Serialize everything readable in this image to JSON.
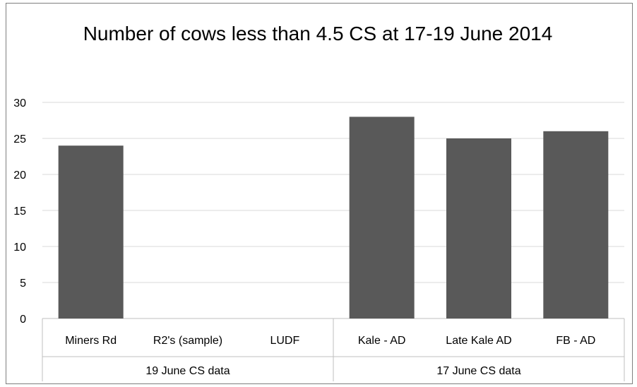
{
  "chart_data": {
    "type": "bar",
    "title": "Number of cows less than 4.5 CS at 17-19 June 2014",
    "categories": [
      "Miners Rd",
      "R2's (sample)",
      "LUDF",
      "Kale - AD",
      "Late Kale AD",
      "FB - AD"
    ],
    "groups": [
      {
        "label": "19 June CS data",
        "categories": [
          "Miners Rd",
          "R2's (sample)",
          "LUDF"
        ]
      },
      {
        "label": "17 June CS data",
        "categories": [
          "Kale - AD",
          "Late Kale AD",
          "FB - AD"
        ]
      }
    ],
    "values": [
      24,
      null,
      null,
      28,
      25,
      26
    ],
    "ylim": [
      0,
      30
    ],
    "yticks": [
      0,
      5,
      10,
      15,
      20,
      25,
      30
    ],
    "bar_color": "#595959",
    "grid": true,
    "xlabel": "",
    "ylabel": ""
  }
}
